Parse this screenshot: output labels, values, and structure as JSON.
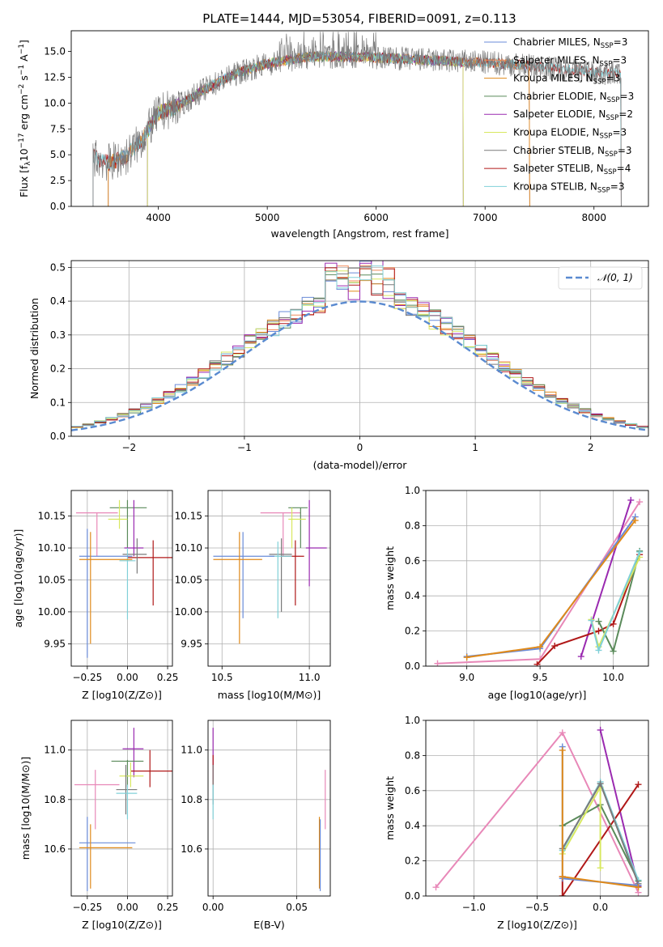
{
  "figure": {
    "title": "PLATE=1444, MJD=53054, FIBERID=0091, z=0.113"
  },
  "colors": {
    "Chabrier MILES": "#6a8bd8",
    "Salpeter MILES": "#f08a5a",
    "Kroupa MILES": "#e08a1a",
    "Chabrier ELODIE": "#5a8a5a",
    "Salpeter ELODIE": "#9a2ab0",
    "Kroupa ELODIE": "#d8e860",
    "Chabrier STELIB": "#7a7a7a",
    "Salpeter STELIB": "#b01818",
    "Kroupa STELIB": "#80d0d8",
    "pink": "#e888b8",
    "normal": "#5a8ad0"
  },
  "chart_data": [
    {
      "id": "spectrum",
      "type": "line",
      "title": "PLATE=1444, MJD=53054, FIBERID=0091, z=0.113",
      "xlabel": "wavelength [Angstrom, rest frame]",
      "ylabel": "Flux [f_λ 10^-17 erg cm^-2 s^-1 A^-1]",
      "xlim": [
        3200,
        8500
      ],
      "ylim": [
        0,
        17
      ],
      "xticks": [
        "4000",
        "5000",
        "6000",
        "7000",
        "8000"
      ],
      "yticks": [
        "0.0",
        "2.5",
        "5.0",
        "7.5",
        "10.0",
        "12.5",
        "15.0"
      ],
      "grid": false,
      "legend_position": "top-right",
      "legend": [
        {
          "label": "Chabrier MILES, N",
          "sub": "SSP",
          "tail": "=3"
        },
        {
          "label": "Salpeter MILES, N",
          "sub": "SSP",
          "tail": "=3"
        },
        {
          "label": "Kroupa MILES, N",
          "sub": "SSP",
          "tail": "=3"
        },
        {
          "label": "Chabrier ELODIE, N",
          "sub": "SSP",
          "tail": "=3"
        },
        {
          "label": "Salpeter ELODIE, N",
          "sub": "SSP",
          "tail": "=2"
        },
        {
          "label": "Kroupa ELODIE, N",
          "sub": "SSP",
          "tail": "=3"
        },
        {
          "label": "Chabrier STELIB, N",
          "sub": "SSP",
          "tail": "=3"
        },
        {
          "label": "Salpeter STELIB, N",
          "sub": "SSP",
          "tail": "=4"
        },
        {
          "label": "Kroupa STELIB, N",
          "sub": "SSP",
          "tail": "=3"
        }
      ],
      "continuum_anchors": {
        "x": [
          3400,
          3550,
          3700,
          3850,
          4000,
          4200,
          4400,
          4600,
          4800,
          5000,
          5200,
          5400,
          5600,
          5800,
          6000,
          6200,
          6400,
          6600,
          6800,
          7000,
          7200,
          7400,
          7600,
          7800,
          8000,
          8250
        ],
        "y": [
          4.8,
          4.2,
          4.8,
          6.5,
          9.0,
          9.8,
          11.2,
          12.3,
          13.2,
          13.8,
          14.2,
          14.5,
          14.5,
          14.5,
          14.4,
          14.3,
          14.2,
          14.1,
          14.0,
          13.9,
          13.8,
          13.6,
          13.4,
          13.2,
          13.0,
          12.8
        ]
      },
      "model_ranges": {
        "Chabrier MILES": [
          3540,
          7410
        ],
        "Salpeter MILES": [
          3540,
          7410
        ],
        "Kroupa MILES": [
          3540,
          7410
        ],
        "Chabrier ELODIE": [
          3900,
          6800
        ],
        "Salpeter ELODIE": [
          3900,
          6800
        ],
        "Kroupa ELODIE": [
          3900,
          6800
        ],
        "Chabrier STELIB": [
          3400,
          8250
        ],
        "Salpeter STELIB": [
          3400,
          8250
        ],
        "Kroupa STELIB": [
          3400,
          8250
        ]
      }
    },
    {
      "id": "residuals",
      "type": "line",
      "xlabel": "(data-model)/error",
      "ylabel": "Normed distribution",
      "xlim": [
        -2.5,
        2.5
      ],
      "ylim": [
        0,
        0.52
      ],
      "xticks": [
        "−2",
        "−1",
        "0",
        "1",
        "2"
      ],
      "yticks": [
        "0.0",
        "0.1",
        "0.2",
        "0.3",
        "0.4",
        "0.5"
      ],
      "grid": true,
      "legend_position": "top-right",
      "legend": [
        {
          "label": "𝒩(0, 1)"
        }
      ],
      "bin_width": 0.1,
      "hist_model_order": [
        "Chabrier MILES",
        "Salpeter MILES",
        "Kroupa MILES",
        "Chabrier ELODIE",
        "Salpeter ELODIE",
        "Kroupa ELODIE",
        "Chabrier STELIB",
        "Salpeter STELIB",
        "Kroupa STELIB"
      ]
    },
    {
      "id": "age-vs-Z",
      "type": "scatter",
      "xlabel": "Z [log10(Z/Z⊙)]",
      "ylabel": "age  [log10(age/yr)]",
      "xlim": [
        -0.35,
        0.28
      ],
      "ylim": [
        9.915,
        10.19
      ],
      "xticks": [
        "−0.25",
        "0.00",
        "0.25"
      ],
      "yticks": [
        "9.95",
        "10.00",
        "10.05",
        "10.10",
        "10.15"
      ],
      "grid": true,
      "points": [
        {
          "model": "pink",
          "x": -0.19,
          "y": 10.155,
          "xlo": -0.32,
          "xhi": -0.06,
          "ylo": 10.087,
          "yhi": 10.155
        },
        {
          "model": "Chabrier ELODIE",
          "x": 0.0,
          "y": 10.163,
          "xlo": -0.11,
          "xhi": 0.12,
          "ylo": 10.1,
          "yhi": 10.175
        },
        {
          "model": "Kroupa ELODIE",
          "x": -0.05,
          "y": 10.145,
          "xlo": -0.12,
          "xhi": 0.0,
          "ylo": 10.13,
          "yhi": 10.175
        },
        {
          "model": "Salpeter ELODIE",
          "x": 0.04,
          "y": 10.1,
          "xlo": -0.02,
          "xhi": 0.1,
          "ylo": 10.087,
          "yhi": 10.175
        },
        {
          "model": "Salpeter STELIB",
          "x": 0.16,
          "y": 10.085,
          "xlo": 0.0,
          "xhi": 0.3,
          "ylo": 10.01,
          "yhi": 10.112
        },
        {
          "model": "Chabrier STELIB",
          "x": 0.06,
          "y": 10.09,
          "xlo": -0.03,
          "xhi": 0.12,
          "ylo": 10.06,
          "yhi": 10.115
        },
        {
          "model": "Kroupa STELIB",
          "x": 0.0,
          "y": 10.08,
          "xlo": -0.05,
          "xhi": 0.05,
          "ylo": 9.988,
          "yhi": 10.1
        },
        {
          "model": "Chabrier MILES",
          "x": -0.25,
          "y": 10.087,
          "xlo": -0.3,
          "xhi": 0.03,
          "ylo": 9.928,
          "yhi": 10.13
        },
        {
          "model": "Kroupa MILES",
          "x": -0.23,
          "y": 10.082,
          "xlo": -0.3,
          "xhi": 0.03,
          "ylo": 9.95,
          "yhi": 10.125
        }
      ]
    },
    {
      "id": "age-vs-mass",
      "type": "scatter",
      "xlabel": "mass [log10(M/M⊙)]",
      "ylabel": "",
      "xlim": [
        10.42,
        11.12
      ],
      "ylim": [
        9.915,
        10.19
      ],
      "xticks": [
        "10.5",
        "11.0"
      ],
      "yticks": [
        "9.95",
        "10.00",
        "10.05",
        "10.10",
        "10.15"
      ],
      "grid": true,
      "points": [
        {
          "model": "pink",
          "x": 10.85,
          "y": 10.155,
          "xlo": 10.72,
          "xhi": 10.95,
          "ylo": 10.087,
          "yhi": 10.155
        },
        {
          "model": "Chabrier ELODIE",
          "x": 10.95,
          "y": 10.163,
          "xlo": 10.88,
          "xhi": 10.99,
          "ylo": 10.1,
          "yhi": 10.163
        },
        {
          "model": "Kroupa ELODIE",
          "x": 10.9,
          "y": 10.145,
          "xlo": 10.88,
          "xhi": 10.98,
          "ylo": 10.1,
          "yhi": 10.163
        },
        {
          "model": "Salpeter ELODIE",
          "x": 11.0,
          "y": 10.1,
          "xlo": 10.98,
          "xhi": 11.1,
          "ylo": 10.04,
          "yhi": 10.175
        },
        {
          "model": "Salpeter STELIB",
          "x": 10.92,
          "y": 10.087,
          "xlo": 10.84,
          "xhi": 10.97,
          "ylo": 10.01,
          "yhi": 10.112
        },
        {
          "model": "Chabrier STELIB",
          "x": 10.84,
          "y": 10.09,
          "xlo": 10.77,
          "xhi": 10.9,
          "ylo": 10.0,
          "yhi": 10.115
        },
        {
          "model": "Kroupa STELIB",
          "x": 10.82,
          "y": 10.087,
          "xlo": 10.77,
          "xhi": 10.9,
          "ylo": 9.99,
          "yhi": 10.11
        },
        {
          "model": "Chabrier MILES",
          "x": 10.62,
          "y": 10.087,
          "xlo": 10.45,
          "xhi": 10.8,
          "ylo": 9.99,
          "yhi": 10.125
        },
        {
          "model": "Kroupa MILES",
          "x": 10.6,
          "y": 10.082,
          "xlo": 10.45,
          "xhi": 10.73,
          "ylo": 9.95,
          "yhi": 10.125
        }
      ]
    },
    {
      "id": "massweight-vs-age",
      "type": "line",
      "xlabel": "age  [log10(age/yr)]",
      "ylabel": "mass weight",
      "xlim": [
        8.72,
        10.24
      ],
      "ylim": [
        0,
        1
      ],
      "xticks": [
        "9.0",
        "9.5",
        "10.0"
      ],
      "yticks": [
        "0.0",
        "0.2",
        "0.4",
        "0.6",
        "0.8",
        "1.0"
      ],
      "grid": true,
      "series": [
        {
          "model": "pink",
          "x": [
            8.8,
            9.5,
            10.18
          ],
          "y": [
            0.015,
            0.04,
            0.935
          ]
        },
        {
          "model": "Salpeter ELODIE",
          "x": [
            9.78,
            10.12
          ],
          "y": [
            0.055,
            0.945
          ]
        },
        {
          "model": "Salpeter STELIB",
          "x": [
            9.48,
            9.6,
            9.9,
            10.0,
            10.18
          ],
          "y": [
            0.01,
            0.115,
            0.2,
            0.24,
            0.635
          ]
        },
        {
          "model": "Chabrier ELODIE",
          "x": [
            9.9,
            10.0,
            10.18
          ],
          "y": [
            0.255,
            0.085,
            0.655
          ]
        },
        {
          "model": "Kroupa ELODIE",
          "x": [
            9.85,
            9.9,
            10.18
          ],
          "y": [
            0.265,
            0.11,
            0.62
          ]
        },
        {
          "model": "Kroupa STELIB",
          "x": [
            9.85,
            9.9,
            10.18
          ],
          "y": [
            0.26,
            0.09,
            0.65
          ]
        },
        {
          "model": "Chabrier MILES",
          "x": [
            9.0,
            9.5,
            10.15
          ],
          "y": [
            0.055,
            0.1,
            0.85
          ]
        },
        {
          "model": "Kroupa MILES",
          "x": [
            9.0,
            9.5,
            10.15
          ],
          "y": [
            0.05,
            0.11,
            0.83
          ]
        }
      ]
    },
    {
      "id": "mass-vs-Z",
      "type": "scatter",
      "xlabel": "Z [log10(Z/Z⊙)]",
      "ylabel": "mass [log10(M/M⊙)]",
      "xlim": [
        -0.35,
        0.28
      ],
      "ylim": [
        10.41,
        11.12
      ],
      "xticks": [
        "−0.25",
        "0.00",
        "0.25"
      ],
      "yticks": [
        "10.6",
        "10.8",
        "11.0"
      ],
      "grid": true,
      "points": [
        {
          "model": "Salpeter ELODIE",
          "x": 0.04,
          "y": 11.005,
          "xlo": -0.03,
          "xhi": 0.1,
          "ylo": 10.89,
          "yhi": 11.09
        },
        {
          "model": "Chabrier ELODIE",
          "x": 0.0,
          "y": 10.955,
          "xlo": -0.1,
          "xhi": 0.1,
          "ylo": 10.85,
          "yhi": 10.96
        },
        {
          "model": "Salpeter STELIB",
          "x": 0.14,
          "y": 10.915,
          "xlo": 0.02,
          "xhi": 0.3,
          "ylo": 10.85,
          "yhi": 11.0
        },
        {
          "model": "Kroupa ELODIE",
          "x": 0.02,
          "y": 10.895,
          "xlo": -0.05,
          "xhi": 0.1,
          "ylo": 10.85,
          "yhi": 10.95
        },
        {
          "model": "pink",
          "x": -0.2,
          "y": 10.86,
          "xlo": -0.33,
          "xhi": -0.05,
          "ylo": 10.68,
          "yhi": 10.92
        },
        {
          "model": "Chabrier STELIB",
          "x": -0.01,
          "y": 10.84,
          "xlo": -0.07,
          "xhi": 0.06,
          "ylo": 10.74,
          "yhi": 10.94
        },
        {
          "model": "Kroupa STELIB",
          "x": 0.0,
          "y": 10.825,
          "xlo": -0.07,
          "xhi": 0.06,
          "ylo": 10.72,
          "yhi": 10.86
        },
        {
          "model": "Chabrier MILES",
          "x": -0.25,
          "y": 10.625,
          "xlo": -0.3,
          "xhi": 0.05,
          "ylo": 10.43,
          "yhi": 10.73
        },
        {
          "model": "Kroupa MILES",
          "x": -0.23,
          "y": 10.605,
          "xlo": -0.3,
          "xhi": 0.03,
          "ylo": 10.44,
          "yhi": 10.7
        }
      ]
    },
    {
      "id": "mass-vs-ebv",
      "type": "scatter",
      "xlabel": "E(B-V)",
      "ylabel": "",
      "xlim": [
        -0.003,
        0.07
      ],
      "ylim": [
        10.41,
        11.12
      ],
      "xticks": [
        "0.00",
        "0.05"
      ],
      "yticks": [
        "10.6",
        "10.8",
        "11.0"
      ],
      "grid": true,
      "points": [
        {
          "model": "Salpeter ELODIE",
          "x": 0.0,
          "y": 11.0,
          "xlo": 0.0,
          "xhi": 0.0,
          "ylo": 10.88,
          "yhi": 11.09
        },
        {
          "model": "Salpeter STELIB",
          "x": 0.0,
          "y": 10.92,
          "xlo": 0.0,
          "xhi": 0.0,
          "ylo": 10.86,
          "yhi": 10.98
        },
        {
          "model": "Chabrier STELIB",
          "x": 0.0,
          "y": 10.86,
          "xlo": 0.0,
          "xhi": 0.0,
          "ylo": 10.78,
          "yhi": 10.94
        },
        {
          "model": "Kroupa STELIB",
          "x": 0.0,
          "y": 10.82,
          "xlo": 0.0,
          "xhi": 0.0,
          "ylo": 10.72,
          "yhi": 10.86
        },
        {
          "model": "pink",
          "x": 0.067,
          "y": 10.84,
          "xlo": 0.067,
          "xhi": 0.067,
          "ylo": 10.68,
          "yhi": 10.92
        },
        {
          "model": "Kroupa MILES",
          "x": 0.0635,
          "y": 10.6,
          "xlo": 0.0635,
          "xhi": 0.0635,
          "ylo": 10.44,
          "yhi": 10.73
        },
        {
          "model": "Chabrier MILES",
          "x": 0.064,
          "y": 10.62,
          "xlo": 0.064,
          "xhi": 0.064,
          "ylo": 10.43,
          "yhi": 10.72
        }
      ]
    },
    {
      "id": "massweight-vs-Z",
      "type": "line",
      "xlabel": "Z [log10(Z/Z⊙)]",
      "ylabel": "mass weight",
      "xlim": [
        -1.38,
        0.38
      ],
      "ylim": [
        0,
        1
      ],
      "xticks": [
        "−1.0",
        "−0.5",
        "0.0"
      ],
      "yticks": [
        "0.0",
        "0.2",
        "0.4",
        "0.6",
        "0.8",
        "1.0"
      ],
      "grid": true,
      "series": [
        {
          "model": "pink",
          "x": [
            -1.3,
            -0.3,
            0.3
          ],
          "y": [
            0.05,
            0.93,
            0.02
          ]
        },
        {
          "model": "Salpeter ELODIE",
          "x": [
            0.0,
            0.3
          ],
          "y": [
            0.945,
            0.055
          ]
        },
        {
          "model": "Salpeter STELIB",
          "x": [
            -0.3,
            -0.3,
            0.3
          ],
          "y": [
            0.11,
            0.0,
            0.635
          ]
        },
        {
          "model": "Chabrier ELODIE",
          "x": [
            -0.3,
            0.0,
            0.3
          ],
          "y": [
            0.4,
            0.52,
            0.085
          ]
        },
        {
          "model": "Kroupa ELODIE",
          "x": [
            -0.3,
            0.0,
            0.0
          ],
          "y": [
            0.24,
            0.62,
            0.16
          ]
        },
        {
          "model": "Kroupa STELIB",
          "x": [
            -0.3,
            0.0,
            0.3
          ],
          "y": [
            0.26,
            0.65,
            0.09
          ]
        },
        {
          "model": "Chabrier STELIB",
          "x": [
            -0.3,
            0.0,
            0.3
          ],
          "y": [
            0.27,
            0.64,
            0.07
          ]
        },
        {
          "model": "Chabrier MILES",
          "x": [
            -0.3,
            -0.3,
            0.3
          ],
          "y": [
            0.85,
            0.1,
            0.06
          ]
        },
        {
          "model": "Kroupa MILES",
          "x": [
            -0.3,
            -0.3,
            0.3
          ],
          "y": [
            0.83,
            0.11,
            0.05
          ]
        }
      ]
    }
  ]
}
